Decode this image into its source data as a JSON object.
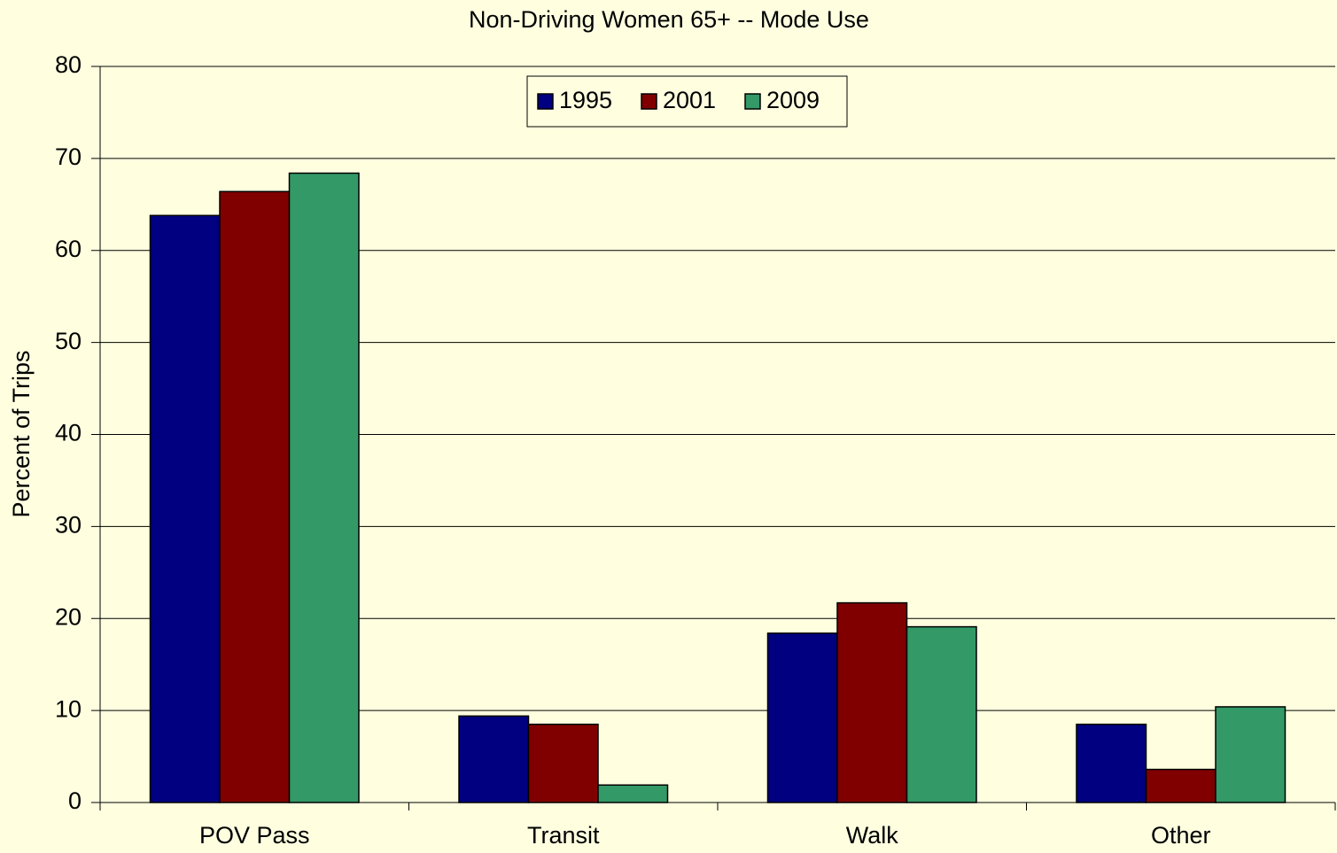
{
  "chart_data": {
    "type": "bar",
    "title": "Non-Driving Women 65+ -- Mode Use",
    "y_label": "Percent of Trips",
    "categories": [
      "POV Pass",
      "Transit",
      "Walk",
      "Other"
    ],
    "series": [
      {
        "name": "1995",
        "color": "#000080",
        "values": [
          63.8,
          9.4,
          18.4,
          8.5
        ]
      },
      {
        "name": "2001",
        "color": "#800000",
        "values": [
          66.4,
          8.5,
          21.7,
          3.6
        ]
      },
      {
        "name": "2009",
        "color": "#339966",
        "values": [
          68.4,
          1.9,
          19.1,
          10.4
        ]
      }
    ],
    "ylim": [
      0,
      80
    ],
    "yticks": [
      0,
      10,
      20,
      30,
      40,
      50,
      60,
      70,
      80
    ],
    "grid": true,
    "legend": "top"
  }
}
